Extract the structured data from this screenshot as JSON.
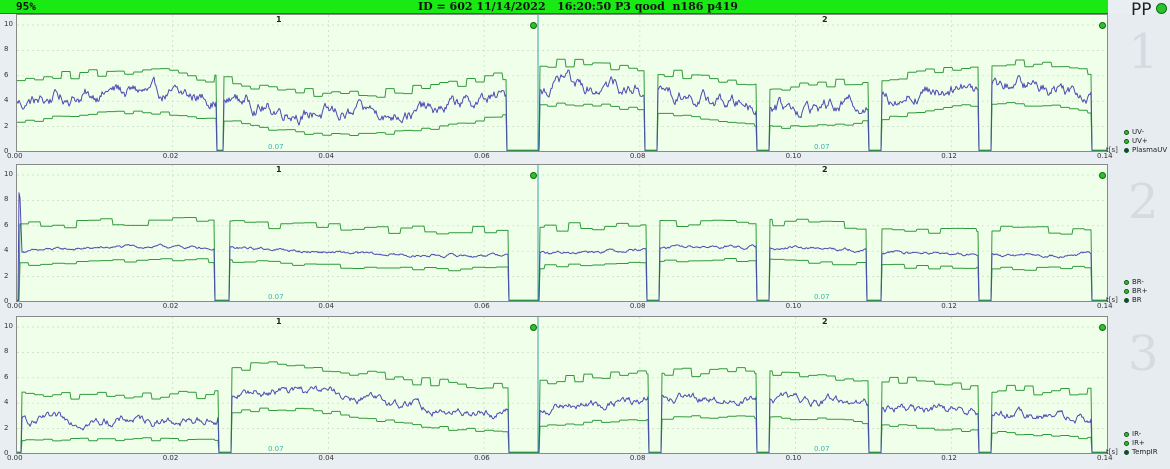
{
  "title_bar": {
    "percent": "95%",
    "main": "ID = 602 11/14/2022   16:20:50 P3 qood  n186 p419",
    "color": "#19ea14"
  },
  "side_header": {
    "label": "PP",
    "status_icon": "green-status-dot"
  },
  "colors": {
    "plot_background": "#f0ffe9",
    "envelope_line": "#2f9a3a",
    "signal_line": "#4b4bb4",
    "baseline": "#b01818",
    "divider": "#3aa3a3",
    "legend_green": "#2bc22b",
    "legend_blue": "#2a2aa0"
  },
  "x_ticks": [
    "0.00",
    "0.02",
    "0.04",
    "0.06",
    "0.08",
    "0.10",
    "0.12",
    "0.14"
  ],
  "t_unit": "t[s]",
  "y_ticks": [
    "10",
    "8",
    "6",
    "4",
    "2",
    "0"
  ],
  "panels": [
    {
      "number": "1",
      "segments": [
        "1",
        "2"
      ],
      "mid_labels": [
        "0.07",
        "0.07"
      ],
      "legend": [
        {
          "label": "UV-",
          "color": "green"
        },
        {
          "label": "UV+",
          "color": "green"
        },
        {
          "label": "PlasmaUV",
          "color": "blue"
        }
      ]
    },
    {
      "number": "2",
      "segments": [
        "1",
        "2"
      ],
      "mid_labels": [
        "0.07",
        "0.07"
      ],
      "legend": [
        {
          "label": "BR-",
          "color": "green"
        },
        {
          "label": "BR+",
          "color": "green"
        },
        {
          "label": "BR",
          "color": "blue"
        }
      ]
    },
    {
      "number": "3",
      "segments": [
        "1",
        "2"
      ],
      "mid_labels": [
        "0.07",
        "0.07"
      ],
      "legend": [
        {
          "label": "IR-",
          "color": "green"
        },
        {
          "label": "IR+",
          "color": "green"
        },
        {
          "label": "TempIR",
          "color": "blue"
        }
      ]
    }
  ]
}
